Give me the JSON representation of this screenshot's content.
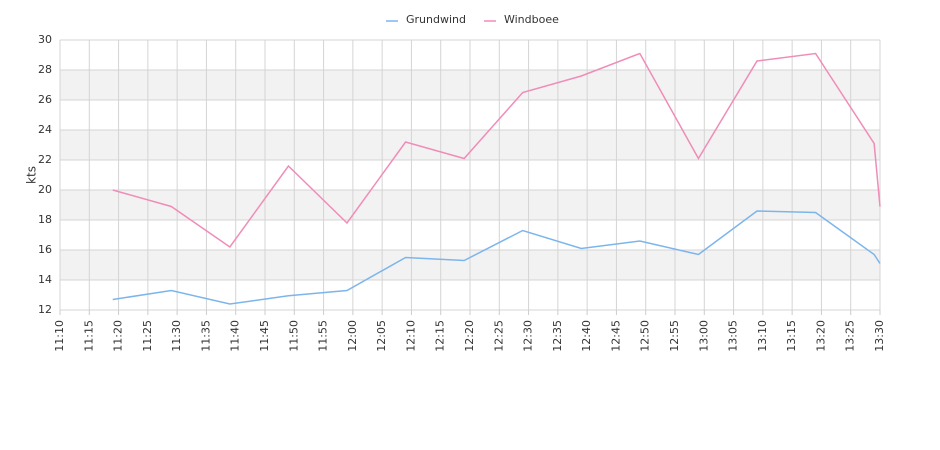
{
  "chart_data": {
    "type": "line",
    "ylabel": "kts",
    "x": [
      "11:19",
      "11:29",
      "11:39",
      "11:49",
      "11:59",
      "12:09",
      "12:19",
      "12:29",
      "12:39",
      "12:49",
      "12:59",
      "13:09",
      "13:19",
      "13:29",
      "13:30"
    ],
    "series": [
      {
        "name": "Grundwind",
        "color": "#7cb5ec",
        "values": [
          12.7,
          13.3,
          12.4,
          12.95,
          13.3,
          15.5,
          15.3,
          17.3,
          16.1,
          16.6,
          15.7,
          18.6,
          18.5,
          15.7,
          15.1
        ]
      },
      {
        "name": "Windboee",
        "color": "#f08cb8",
        "values": [
          20.0,
          18.9,
          16.2,
          21.6,
          17.8,
          23.2,
          22.1,
          26.5,
          27.6,
          29.1,
          22.1,
          28.6,
          29.1,
          23.1,
          18.9
        ]
      }
    ],
    "xlim": [
      "11:10",
      "13:30"
    ],
    "xticks": [
      "11:10",
      "11:15",
      "11:20",
      "11:25",
      "11:30",
      "11:35",
      "11:40",
      "11:45",
      "11:50",
      "11:55",
      "12:00",
      "12:05",
      "12:10",
      "12:15",
      "12:20",
      "12:25",
      "12:30",
      "12:35",
      "12:40",
      "12:45",
      "12:50",
      "12:55",
      "13:00",
      "13:05",
      "13:10",
      "13:15",
      "13:20",
      "13:25",
      "13:30"
    ],
    "ylim": [
      12,
      30
    ],
    "yticks": [
      12,
      14,
      16,
      18,
      20,
      22,
      24,
      26,
      28,
      30
    ],
    "grid": true
  }
}
